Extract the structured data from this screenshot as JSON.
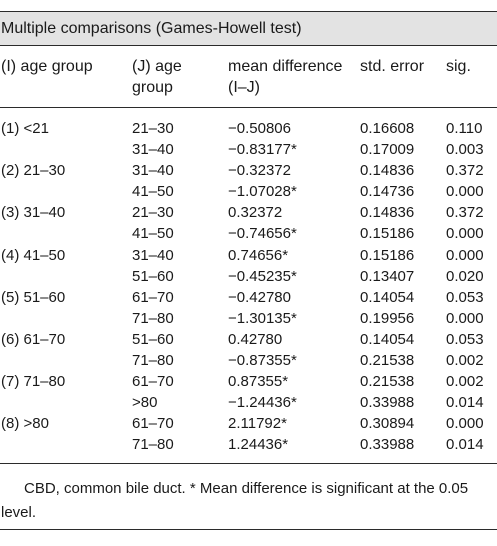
{
  "caption": "Multiple comparisons (Games-Howell test)",
  "headers": {
    "i_group": "(I) age group",
    "j_group_line1": "(J) age",
    "j_group_line2": "group",
    "mean_diff_line1": "mean difference",
    "mean_diff_line2": "(I–J)",
    "std_error": "std. error",
    "sig": "sig."
  },
  "rows": [
    {
      "i": "(1) <21",
      "j": "21–30",
      "md": "−0.50806",
      "se": "0.16608",
      "sig": "0.110"
    },
    {
      "i": "",
      "j": "31–40",
      "md": "−0.83177*",
      "se": "0.17009",
      "sig": "0.003"
    },
    {
      "i": "(2) 21–30",
      "j": "31–40",
      "md": "−0.32372",
      "se": "0.14836",
      "sig": "0.372"
    },
    {
      "i": "",
      "j": "41–50",
      "md": "−1.07028*",
      "se": "0.14736",
      "sig": "0.000"
    },
    {
      "i": "(3) 31–40",
      "j": "21–30",
      "md": "0.32372",
      "se": "0.14836",
      "sig": "0.372"
    },
    {
      "i": "",
      "j": "41–50",
      "md": "−0.74656*",
      "se": "0.15186",
      "sig": "0.000"
    },
    {
      "i": "(4) 41–50",
      "j": "31–40",
      "md": "0.74656*",
      "se": "0.15186",
      "sig": "0.000"
    },
    {
      "i": "",
      "j": "51–60",
      "md": "−0.45235*",
      "se": "0.13407",
      "sig": "0.020"
    },
    {
      "i": "(5) 51–60",
      "j": "61–70",
      "md": "−0.42780",
      "se": "0.14054",
      "sig": "0.053"
    },
    {
      "i": "",
      "j": "71–80",
      "md": "−1.30135*",
      "se": "0.19956",
      "sig": "0.000"
    },
    {
      "i": "(6) 61–70",
      "j": "51–60",
      "md": "0.42780",
      "se": "0.14054",
      "sig": "0.053"
    },
    {
      "i": "",
      "j": "71–80",
      "md": "−0.87355*",
      "se": "0.21538",
      "sig": "0.002"
    },
    {
      "i": "(7) 71–80",
      "j": "61–70",
      "md": "0.87355*",
      "se": "0.21538",
      "sig": "0.002"
    },
    {
      "i": "",
      "j": ">80",
      "md": "−1.24436*",
      "se": "0.33988",
      "sig": "0.014"
    },
    {
      "i": "(8) >80",
      "j": "61–70",
      "md": "2.11792*",
      "se": "0.30894",
      "sig": "0.000"
    },
    {
      "i": "",
      "j": "71–80",
      "md": "1.24436*",
      "se": "0.33988",
      "sig": "0.014"
    }
  ],
  "footnote": "CBD, common bile duct. * Mean difference is significant at the 0.05 level."
}
